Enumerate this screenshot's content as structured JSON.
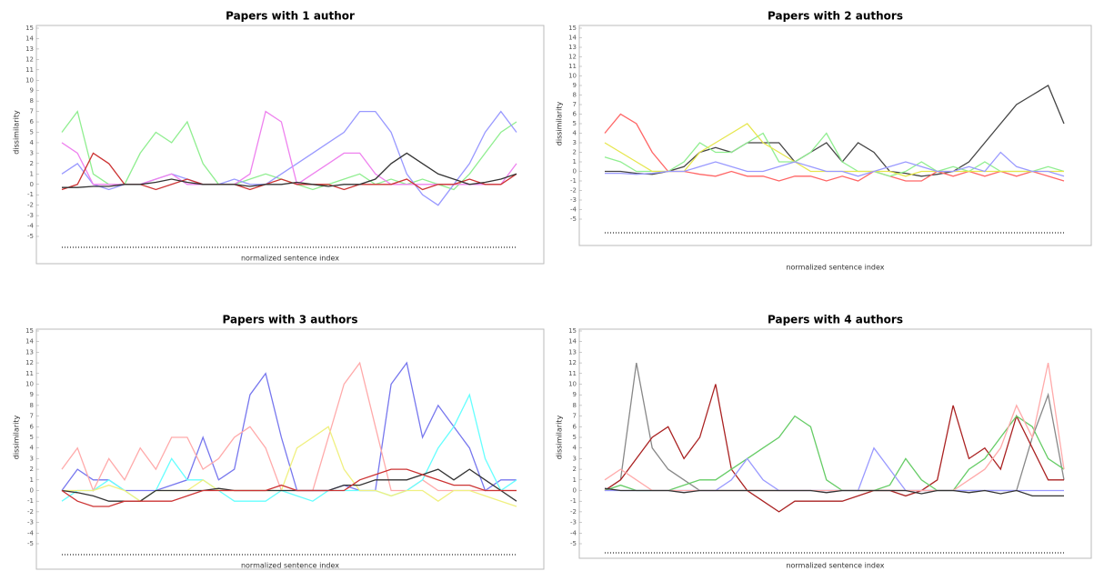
{
  "chart_data": [
    {
      "type": "line",
      "title": "Papers with 1 author",
      "y_label": "dissimilarity",
      "x_label": "normalized sentence index",
      "ylim": [
        -5,
        15
      ],
      "yticks": [
        -5,
        -4,
        -3,
        -2,
        -1,
        0,
        1,
        2,
        3,
        4,
        5,
        6,
        7,
        8,
        9,
        10,
        11,
        12,
        13,
        14,
        15
      ],
      "series": [
        {
          "color": "#90ee90",
          "values": [
            5,
            7,
            1,
            0,
            0,
            3,
            5,
            4,
            6,
            2,
            0,
            0,
            0.5,
            1,
            0.5,
            0,
            -0.5,
            0,
            0.5,
            1,
            0,
            0.5,
            0,
            0.5,
            0,
            -0.5,
            1,
            3,
            5,
            6
          ]
        },
        {
          "color": "#9999ff",
          "values": [
            1,
            2,
            0,
            -0.5,
            0,
            0,
            0.5,
            1,
            0.5,
            0,
            0,
            0.5,
            0,
            0,
            1,
            2,
            3,
            4,
            5,
            7,
            7,
            5,
            1,
            -1,
            -2,
            0,
            2,
            5,
            7,
            5
          ]
        },
        {
          "color": "#ee82ee",
          "values": [
            4,
            3,
            0,
            0,
            0,
            0,
            0.5,
            1,
            0,
            0,
            0,
            0,
            1,
            7,
            6,
            0,
            1,
            2,
            3,
            3,
            1,
            0,
            0,
            0,
            0,
            0,
            0,
            0,
            0,
            2
          ]
        },
        {
          "color": "#cc3333",
          "values": [
            -0.5,
            0,
            3,
            2,
            0,
            0,
            -0.5,
            0,
            0.5,
            0,
            0,
            0,
            -0.5,
            0,
            0.5,
            0,
            0,
            0,
            -0.5,
            0,
            0,
            0,
            0.5,
            -0.5,
            0,
            0,
            0.5,
            0,
            0,
            1
          ]
        },
        {
          "color": "#333333",
          "values": [
            -0.3,
            -0.3,
            -0.2,
            -0.2,
            0,
            0,
            0.2,
            0.5,
            0.2,
            0,
            0,
            0,
            -0.2,
            0,
            0,
            0.2,
            0,
            -0.2,
            0,
            0,
            0.5,
            2,
            3,
            2,
            1,
            0.5,
            0,
            0.2,
            0.5,
            1
          ]
        }
      ]
    },
    {
      "type": "line",
      "title": "Papers with 2 authors",
      "y_label": "dissimilarity",
      "x_label": "normalized sentence index",
      "ylim": [
        -5,
        15
      ],
      "yticks": [
        -5,
        -4,
        -3,
        -2,
        -1,
        0,
        1,
        2,
        3,
        4,
        5,
        6,
        7,
        8,
        9,
        10,
        11,
        12,
        13,
        14,
        15
      ],
      "series": [
        {
          "color": "#444444",
          "values": [
            0,
            0,
            -0.2,
            -0.3,
            0,
            0.5,
            2,
            2.5,
            2,
            3,
            3,
            3,
            1,
            2,
            3,
            1,
            3,
            2,
            0,
            -0.2,
            -0.5,
            -0.3,
            0,
            1,
            3,
            5,
            7,
            8,
            9,
            5
          ]
        },
        {
          "color": "#ff6666",
          "values": [
            4,
            6,
            5,
            2,
            0,
            0,
            -0.3,
            -0.5,
            0,
            -0.5,
            -0.5,
            -1,
            -0.5,
            -0.5,
            -1,
            -0.5,
            -1,
            0,
            -0.5,
            -1,
            -1,
            0,
            -0.5,
            0,
            -0.5,
            0,
            -0.5,
            0,
            -0.5,
            -1
          ]
        },
        {
          "color": "#90ee90",
          "values": [
            1.5,
            1,
            0,
            0,
            0,
            1,
            3,
            2,
            2,
            3,
            4,
            1,
            1,
            2,
            4,
            1,
            0,
            0,
            -0.5,
            0,
            1,
            0,
            0.5,
            0,
            1,
            0,
            0,
            0,
            0.5,
            0
          ]
        },
        {
          "color": "#e6e64d",
          "values": [
            3,
            2,
            1,
            0,
            0,
            0,
            2,
            3,
            4,
            5,
            3,
            2,
            1,
            0,
            0,
            0,
            0,
            0,
            0,
            -0.5,
            0,
            0,
            0,
            0,
            0,
            0,
            0,
            0,
            0,
            0
          ]
        },
        {
          "color": "#9999ff",
          "values": [
            -0.2,
            -0.2,
            -0.3,
            -0.2,
            0,
            0,
            0.5,
            1,
            0.5,
            0,
            0,
            0.5,
            1,
            0.5,
            0,
            0,
            -0.5,
            0,
            0.5,
            1,
            0.5,
            0,
            0,
            0.5,
            0,
            2,
            0.5,
            0,
            0,
            -0.5
          ]
        }
      ]
    },
    {
      "type": "line",
      "title": "Papers with 3 authors",
      "y_label": "dissimilarity",
      "x_label": "normalized sentence index",
      "ylim": [
        -5,
        15
      ],
      "yticks": [
        -5,
        -4,
        -3,
        -2,
        -1,
        0,
        1,
        2,
        3,
        4,
        5,
        6,
        7,
        8,
        9,
        10,
        11,
        12,
        13,
        14,
        15
      ],
      "series": [
        {
          "color": "#7777ee",
          "values": [
            0,
            2,
            1,
            1,
            0,
            0,
            0,
            0.5,
            1,
            5,
            1,
            2,
            9,
            11,
            5,
            0,
            0,
            0,
            0.5,
            0,
            0,
            10,
            12,
            5,
            8,
            6,
            4,
            0,
            1,
            1
          ]
        },
        {
          "color": "#ffaaaa",
          "values": [
            2,
            4,
            0,
            3,
            1,
            4,
            2,
            5,
            5,
            2,
            3,
            5,
            6,
            4,
            0,
            0,
            0,
            5,
            10,
            12,
            6,
            0,
            0,
            1,
            0,
            0,
            0,
            0,
            0,
            0
          ]
        },
        {
          "color": "#66ffff",
          "values": [
            -1,
            0,
            0,
            1,
            0,
            -1,
            0,
            3,
            1,
            1,
            0,
            -1,
            -1,
            -1,
            0,
            -0.5,
            -1,
            0,
            0,
            0,
            0,
            -0.5,
            0,
            1,
            4,
            6,
            9,
            3,
            0,
            1
          ]
        },
        {
          "color": "#f0f080",
          "values": [
            0,
            0,
            0,
            0.5,
            0,
            -1,
            0,
            0,
            0,
            1,
            0,
            0,
            0,
            0,
            0,
            4,
            5,
            6,
            2,
            0,
            0,
            -0.5,
            0,
            0,
            -1,
            0,
            0,
            -0.5,
            -1,
            -1.5
          ]
        },
        {
          "color": "#333333",
          "values": [
            0,
            -0.2,
            -0.5,
            -1,
            -1,
            -1,
            0,
            0,
            0,
            0,
            0.2,
            0,
            0,
            0,
            0,
            0,
            0,
            0,
            0.5,
            0.5,
            1,
            1,
            1,
            1.5,
            2,
            1,
            2,
            1,
            0,
            -1
          ]
        },
        {
          "color": "#cc3333",
          "values": [
            0,
            -1,
            -1.5,
            -1.5,
            -1,
            -1,
            -1,
            -1,
            -0.5,
            0,
            0,
            0,
            0,
            0,
            0.5,
            0,
            0,
            0,
            0,
            1,
            1.5,
            2,
            2,
            1.5,
            1,
            0.5,
            0.5,
            0,
            0,
            0
          ]
        }
      ]
    },
    {
      "type": "line",
      "title": "Papers with 4 authors",
      "y_label": "dissimilarity",
      "x_label": "normalized sentence index",
      "ylim": [
        -5,
        15
      ],
      "yticks": [
        -5,
        -4,
        -3,
        -2,
        -1,
        0,
        1,
        2,
        3,
        4,
        5,
        6,
        7,
        8,
        9,
        10,
        11,
        12,
        13,
        14,
        15
      ],
      "series": [
        {
          "color": "#888888",
          "values": [
            0,
            1,
            12,
            4,
            2,
            1,
            0,
            0,
            0,
            0,
            0,
            0,
            0,
            0,
            0,
            0,
            0,
            0,
            0,
            0,
            0,
            0,
            0,
            0,
            0,
            0,
            0,
            5,
            9,
            1
          ]
        },
        {
          "color": "#aa2222",
          "values": [
            0,
            1,
            3,
            5,
            6,
            3,
            5,
            10,
            2,
            0,
            -1,
            -2,
            -1,
            -1,
            -1,
            -1,
            -0.5,
            0,
            0,
            -0.5,
            0,
            1,
            8,
            3,
            4,
            2,
            7,
            4,
            1,
            1
          ]
        },
        {
          "color": "#66cc66",
          "values": [
            0,
            0.5,
            0,
            0,
            0,
            0.5,
            1,
            1,
            2,
            3,
            4,
            5,
            7,
            6,
            1,
            0,
            0,
            0,
            0.5,
            3,
            1,
            0,
            0,
            2,
            3,
            5,
            7,
            6,
            3,
            2
          ]
        },
        {
          "color": "#9999ff",
          "values": [
            0,
            0,
            0,
            0,
            0,
            0,
            0,
            0,
            1,
            3,
            1,
            0,
            0,
            0,
            0,
            0,
            0,
            4,
            2,
            0,
            0,
            0,
            0,
            0,
            0,
            0,
            0,
            0,
            0,
            0
          ]
        },
        {
          "color": "#ffaaaa",
          "values": [
            1,
            2,
            1,
            0,
            0,
            0,
            0,
            0,
            0,
            0,
            0,
            0,
            0,
            0,
            0,
            0,
            0,
            0,
            0,
            0,
            0,
            0,
            0,
            1,
            2,
            4,
            8,
            5,
            12,
            2
          ]
        },
        {
          "color": "#333333",
          "values": [
            0.2,
            0,
            0,
            0,
            0,
            -0.2,
            0,
            0,
            0,
            0,
            0,
            0,
            0,
            0,
            -0.2,
            0,
            0,
            0,
            0,
            0,
            -0.3,
            0,
            0,
            -0.2,
            0,
            -0.3,
            0,
            -0.5,
            -0.5,
            -0.5
          ]
        }
      ]
    }
  ]
}
